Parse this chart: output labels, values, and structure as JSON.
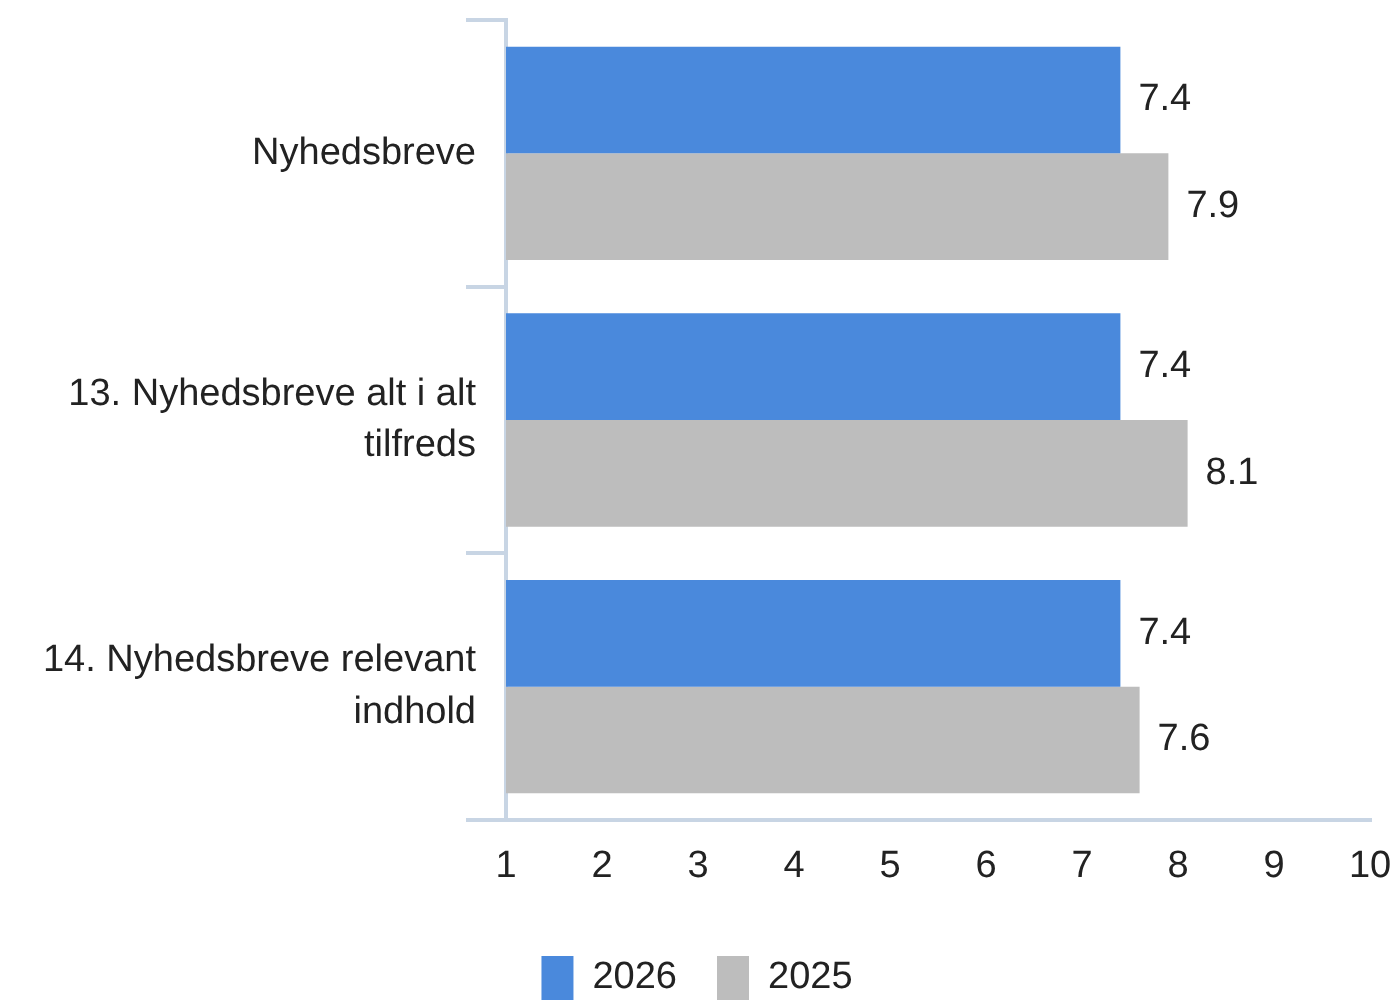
{
  "chart_data": {
    "type": "bar",
    "orientation": "horizontal",
    "categories": [
      "Nyhedsbreve",
      "13. Nyhedsbreve alt i alt tilfreds",
      "14. Nyhedsbreve relevant indhold"
    ],
    "series": [
      {
        "name": "2026",
        "color": "#4a89dc",
        "values": [
          7.4,
          7.4,
          7.4
        ]
      },
      {
        "name": "2025",
        "color": "#bdbdbd",
        "values": [
          7.9,
          8.1,
          7.6
        ]
      }
    ],
    "xlim": [
      1,
      10
    ],
    "xticks": [
      1,
      2,
      3,
      4,
      5,
      6,
      7,
      8,
      9,
      10
    ],
    "data_labels": true,
    "legend": "bottom"
  }
}
